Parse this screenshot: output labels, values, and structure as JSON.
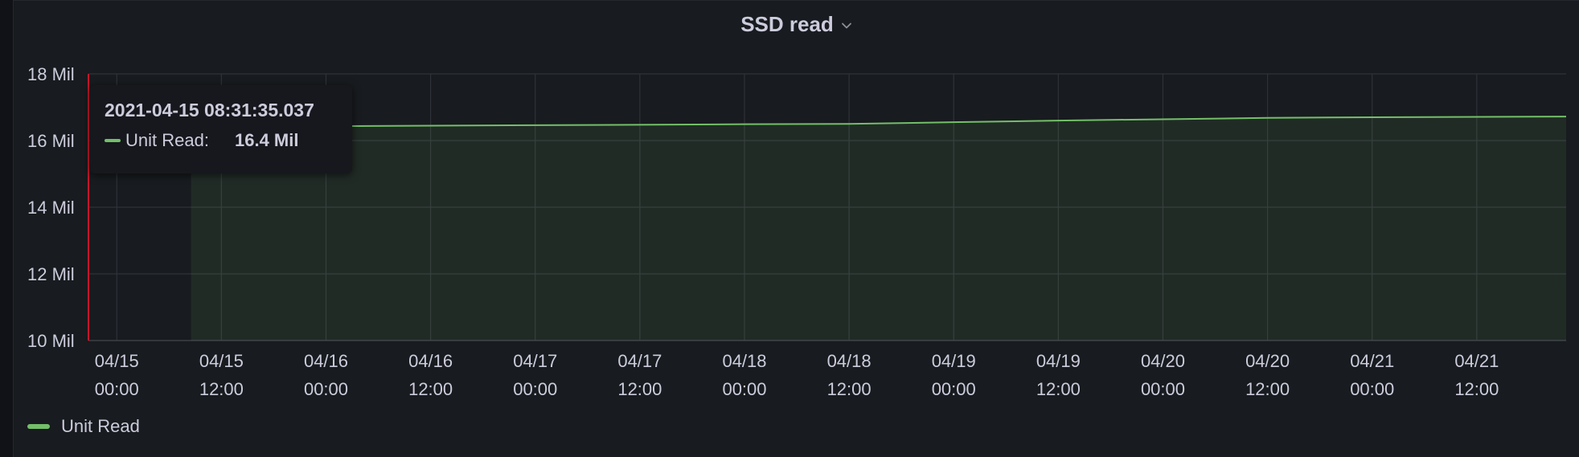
{
  "panel": {
    "title": "SSD read"
  },
  "tooltip": {
    "time": "2021-04-15 08:31:35.037",
    "series_name": "Unit Read:",
    "value": "16.4 Mil"
  },
  "legend": {
    "items": [
      {
        "label": "Unit Read",
        "color": "#73bf69"
      }
    ]
  },
  "chart_data": {
    "type": "area",
    "ylim": [
      10,
      18
    ],
    "y_tick_values": [
      10,
      12,
      14,
      16,
      18
    ],
    "y_tick_labels": [
      "10 Mil",
      "12 Mil",
      "14 Mil",
      "16 Mil",
      "18 Mil"
    ],
    "xlim": [
      "2021-04-14 20:45",
      "2021-04-21 22:15"
    ],
    "x_ticks": [
      {
        "date": "04/15",
        "time": "00:00",
        "value": "2021-04-15 00:00"
      },
      {
        "date": "04/15",
        "time": "12:00",
        "value": "2021-04-15 12:00"
      },
      {
        "date": "04/16",
        "time": "00:00",
        "value": "2021-04-16 00:00"
      },
      {
        "date": "04/16",
        "time": "12:00",
        "value": "2021-04-16 12:00"
      },
      {
        "date": "04/17",
        "time": "00:00",
        "value": "2021-04-17 00:00"
      },
      {
        "date": "04/17",
        "time": "12:00",
        "value": "2021-04-17 12:00"
      },
      {
        "date": "04/18",
        "time": "00:00",
        "value": "2021-04-18 00:00"
      },
      {
        "date": "04/18",
        "time": "12:00",
        "value": "2021-04-18 12:00"
      },
      {
        "date": "04/19",
        "time": "00:00",
        "value": "2021-04-19 00:00"
      },
      {
        "date": "04/19",
        "time": "12:00",
        "value": "2021-04-19 12:00"
      },
      {
        "date": "04/20",
        "time": "00:00",
        "value": "2021-04-20 00:00"
      },
      {
        "date": "04/20",
        "time": "12:00",
        "value": "2021-04-20 12:00"
      },
      {
        "date": "04/21",
        "time": "00:00",
        "value": "2021-04-21 00:00"
      },
      {
        "date": "04/21",
        "time": "12:00",
        "value": "2021-04-21 12:00"
      }
    ],
    "series": [
      {
        "name": "Unit Read",
        "color": "#73bf69",
        "points": [
          {
            "x": "2021-04-15 08:31",
            "y": 16.4
          },
          {
            "x": "2021-04-16 00:00",
            "y": 16.43
          },
          {
            "x": "2021-04-17 00:00",
            "y": 16.46
          },
          {
            "x": "2021-04-18 00:00",
            "y": 16.49
          },
          {
            "x": "2021-04-18 12:00",
            "y": 16.5
          },
          {
            "x": "2021-04-19 00:00",
            "y": 16.55
          },
          {
            "x": "2021-04-19 12:00",
            "y": 16.6
          },
          {
            "x": "2021-04-20 00:00",
            "y": 16.64
          },
          {
            "x": "2021-04-20 12:00",
            "y": 16.68
          },
          {
            "x": "2021-04-21 00:00",
            "y": 16.7
          },
          {
            "x": "2021-04-21 22:15",
            "y": 16.72
          }
        ]
      }
    ],
    "cursor_x": "2021-04-14 20:45",
    "grid": true,
    "legend_position": "bottom-left"
  }
}
